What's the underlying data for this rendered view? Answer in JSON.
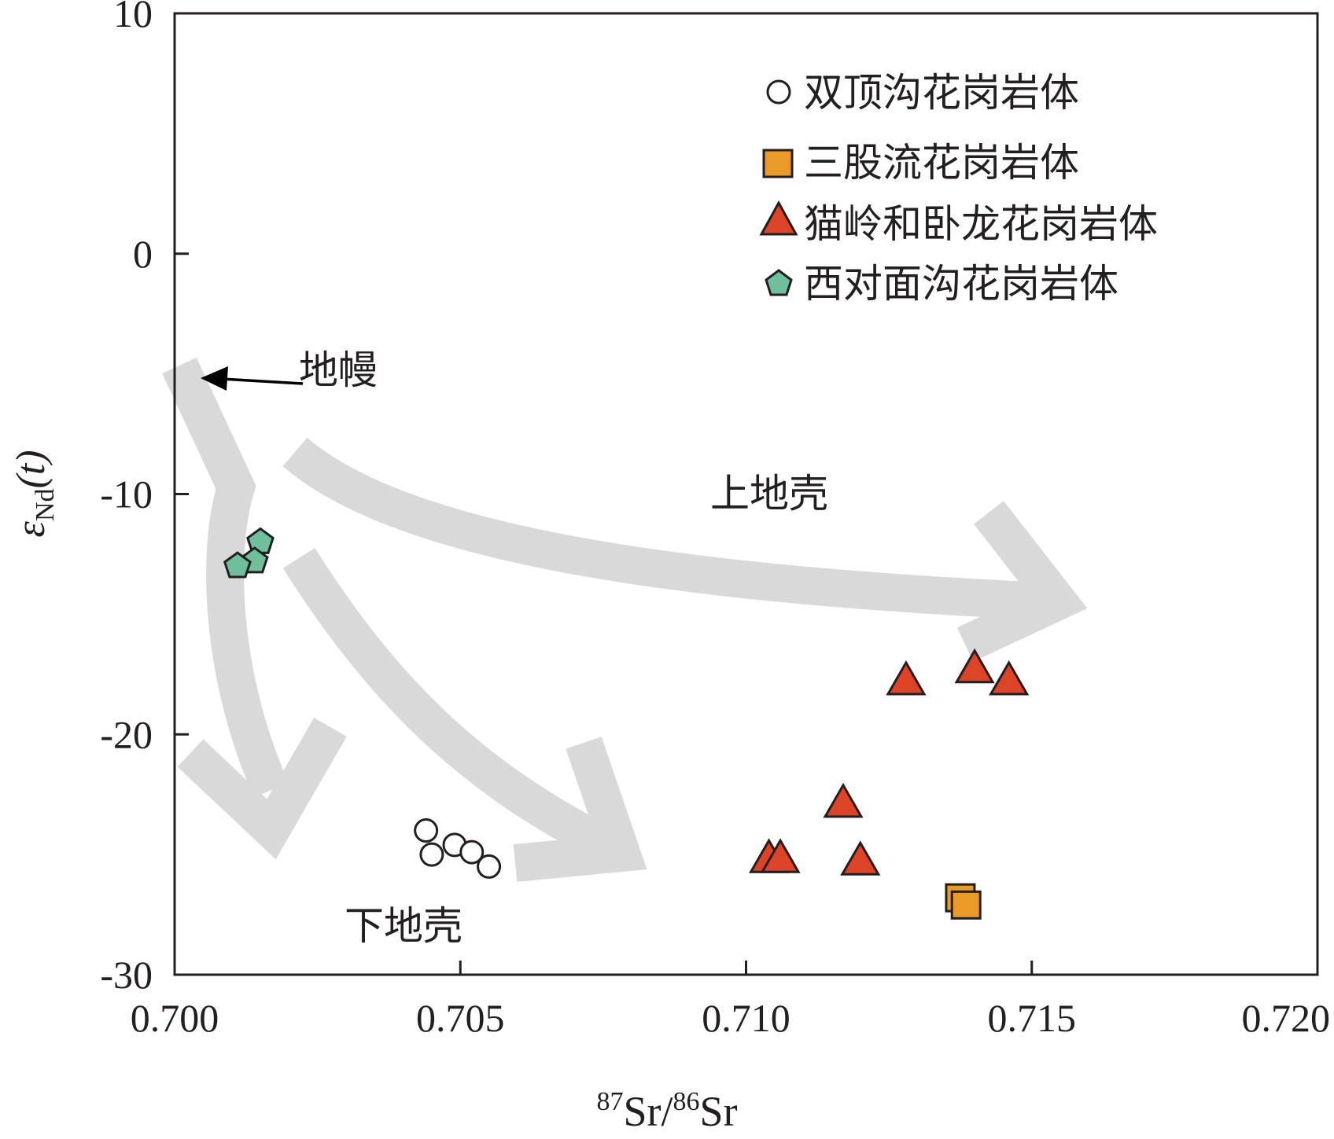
{
  "chart_data": {
    "type": "scatter",
    "xlabel": {
      "sup1": "87",
      "base1": "Sr/",
      "sup2": "86",
      "base2": "Sr"
    },
    "ylabel": {
      "main": "ε",
      "sub": "Nd",
      "tail": "(t)"
    },
    "xlim": [
      0.7,
      0.72
    ],
    "ylim": [
      -30,
      10
    ],
    "x_ticks": [
      0.7,
      0.705,
      0.71,
      0.715,
      0.72
    ],
    "x_tick_labels": [
      "0.700",
      "0.705",
      "0.710",
      "0.715",
      "0.720"
    ],
    "y_ticks": [
      10,
      0,
      -10,
      -20,
      -30
    ],
    "y_tick_labels": [
      "10",
      "0",
      "-10",
      "-20",
      "-30"
    ],
    "grid": false,
    "legend": "top-right",
    "series": [
      {
        "name": "双顶沟花岗岩体",
        "marker": "circle",
        "fill": "#ffffff",
        "points": [
          [
            0.7044,
            -24.0
          ],
          [
            0.7045,
            -25.0
          ],
          [
            0.7049,
            -24.6
          ],
          [
            0.7052,
            -24.9
          ],
          [
            0.7055,
            -25.5
          ]
        ]
      },
      {
        "name": "三股流花岗岩体",
        "marker": "square",
        "fill": "#ea9a26",
        "points": [
          [
            0.71375,
            -26.8
          ],
          [
            0.71385,
            -27.1
          ]
        ]
      },
      {
        "name": "猫岭和卧龙花岗岩体",
        "marker": "triangle",
        "fill": "#dd4326",
        "points": [
          [
            0.7128,
            -17.8
          ],
          [
            0.714,
            -17.3
          ],
          [
            0.7146,
            -17.8
          ],
          [
            0.7117,
            -22.9
          ],
          [
            0.7104,
            -25.2
          ],
          [
            0.7106,
            -25.2
          ],
          [
            0.712,
            -25.3
          ]
        ]
      },
      {
        "name": "西对面沟花岗岩体",
        "marker": "pentagon",
        "fill": "#6fc09a",
        "points": [
          [
            0.7015,
            -12.0
          ],
          [
            0.7014,
            -12.8
          ],
          [
            0.7011,
            -13.0
          ]
        ]
      }
    ],
    "annotations": [
      {
        "text": "地幔",
        "x": 0.7022,
        "y": -5.0
      },
      {
        "text": "上地壳",
        "x": 0.7095,
        "y": -10.5
      },
      {
        "text": "下地壳",
        "x": 0.703,
        "y": -27.8
      }
    ],
    "colors": {
      "axis": "#231f20",
      "trend_arrows": "#d9d9d9",
      "mantle_arrow": "#000000"
    }
  }
}
